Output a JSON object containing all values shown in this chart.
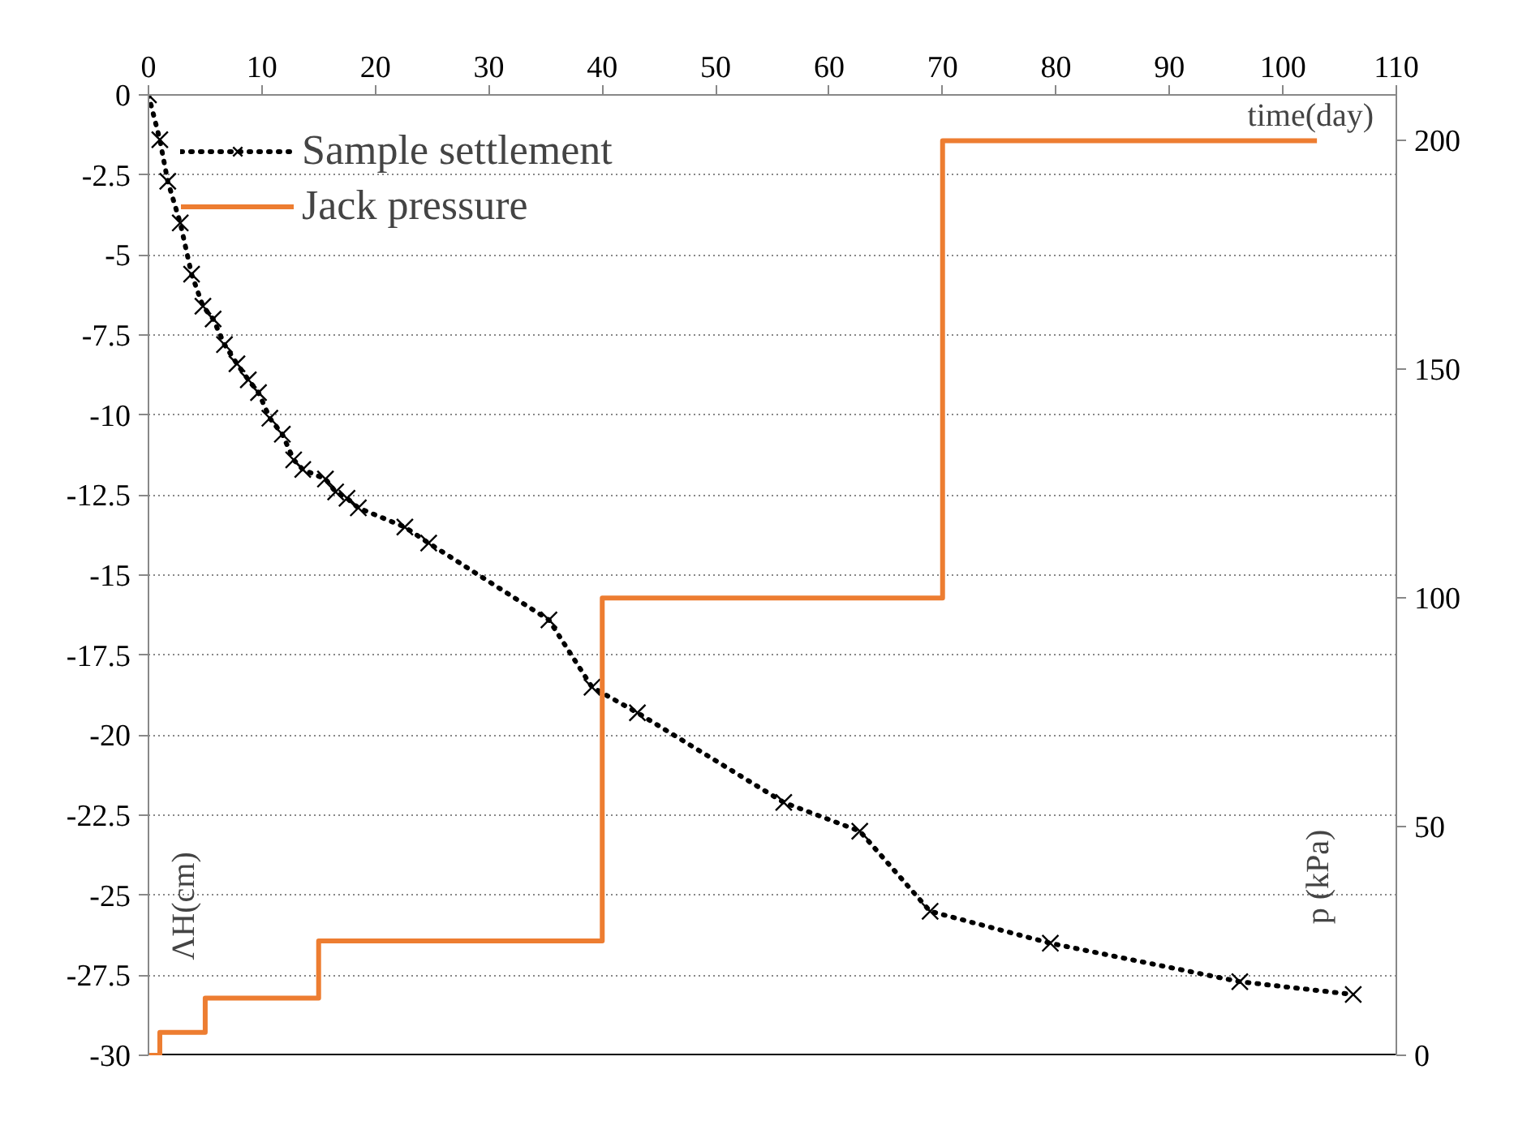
{
  "chart_data": {
    "type": "line",
    "xlabel": "time(day)",
    "ylabel": "ΛH(cm)",
    "y2label": "p (kPa)",
    "xlim": [
      0,
      110
    ],
    "xticks": [
      0,
      10,
      20,
      30,
      40,
      50,
      60,
      70,
      80,
      90,
      100,
      110
    ],
    "ylim": [
      -30,
      0
    ],
    "yticks": [
      0,
      -2.5,
      -5,
      -7.5,
      -10,
      -12.5,
      -15,
      -17.5,
      -20,
      -22.5,
      -25,
      -27.5,
      -30
    ],
    "y2lim": [
      0,
      210
    ],
    "y2ticks": [
      0,
      50,
      100,
      150,
      200
    ],
    "grid": "y",
    "legend": "top left",
    "series": [
      {
        "name": "Sample settlement",
        "color": "#000000",
        "marker": "cross",
        "line_style": "dotted",
        "x": [
          0,
          1,
          1.7,
          2.8,
          3.8,
          4.8,
          5.7,
          6.7,
          7.8,
          8.8,
          9.7,
          10.7,
          11.8,
          12.8,
          13.6,
          15.6,
          16.5,
          17.5,
          18.5,
          22.6,
          24.7,
          35.3,
          39.1,
          43.1,
          56,
          62.7,
          68.9,
          79.5,
          96.2,
          106.2
        ],
        "values": [
          0,
          -1.4,
          -2.7,
          -4,
          -5.6,
          -6.6,
          -7,
          -7.8,
          -8.4,
          -8.9,
          -9.3,
          -10.1,
          -10.6,
          -11.4,
          -11.7,
          -12,
          -12.4,
          -12.6,
          -12.9,
          -13.5,
          -14,
          -16.4,
          -18.5,
          -19.3,
          -22.1,
          -23,
          -25.5,
          -26.5,
          -27.7,
          -28.1
        ]
      },
      {
        "name": "Jack pressure",
        "type": "step",
        "axis": "y2",
        "color": "#ed7d31",
        "line_style": "solid",
        "x": [
          0,
          1,
          5,
          15,
          40,
          70,
          103
        ],
        "values": [
          0,
          5,
          12.5,
          25,
          100,
          200,
          200
        ]
      }
    ]
  }
}
